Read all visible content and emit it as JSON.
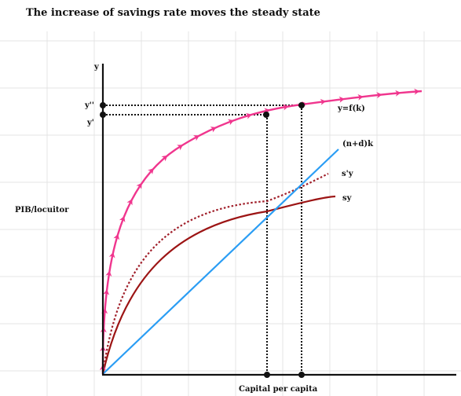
{
  "title": "The increase of savings rate moves the steady state",
  "axes": {
    "y_label": "y",
    "y_axis_title": "PIB/locuitor",
    "x_axis_title": "Capital per capita"
  },
  "curves": {
    "production": "y=f(k)",
    "depreciation": "(n+d)k",
    "new_savings": "s'y",
    "savings": "sy"
  },
  "levels": {
    "y_new": "y''",
    "y_old": "y'"
  },
  "colors": {
    "production": "#f0368e",
    "depreciation": "#2a9df4",
    "savings": "#9c1414",
    "new_savings": "#a01f2a",
    "axis": "#111111",
    "grid": "#e4e4e4",
    "guide": "#111111"
  }
}
